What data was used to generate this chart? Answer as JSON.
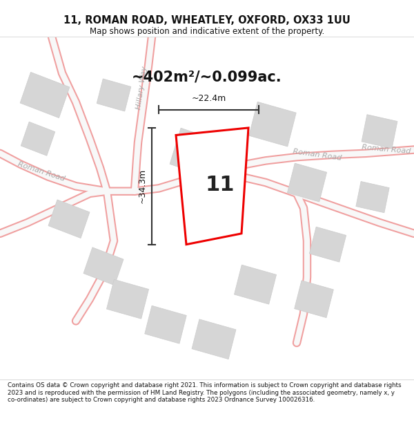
{
  "title_line1": "11, ROMAN ROAD, WHEATLEY, OXFORD, OX33 1UU",
  "title_line2": "Map shows position and indicative extent of the property.",
  "area_label": "~402m²/~0.099ac.",
  "number_label": "11",
  "dim_height": "~34.3m",
  "dim_width": "~22.4m",
  "footer_text": "Contains OS data © Crown copyright and database right 2021. This information is subject to Crown copyright and database rights 2023 and is reproduced with the permission of HM Land Registry. The polygons (including the associated geometry, namely x, y co-ordinates) are subject to Crown copyright and database rights 2023 Ordnance Survey 100026316.",
  "bg_color": "#ffffff",
  "map_bg": "#f8f8f8",
  "property_outline_color": "#ee0000",
  "property_fill": "#ffffff",
  "building_fill": "#d6d6d6",
  "building_edge": "#cccccc",
  "road_line_color": "#f0a0a0",
  "road_fill_color": "#f5f5f5",
  "dim_line_color": "#333333",
  "road_text_color": "#aaaaaa",
  "title_color": "#111111",
  "footer_color": "#111111"
}
